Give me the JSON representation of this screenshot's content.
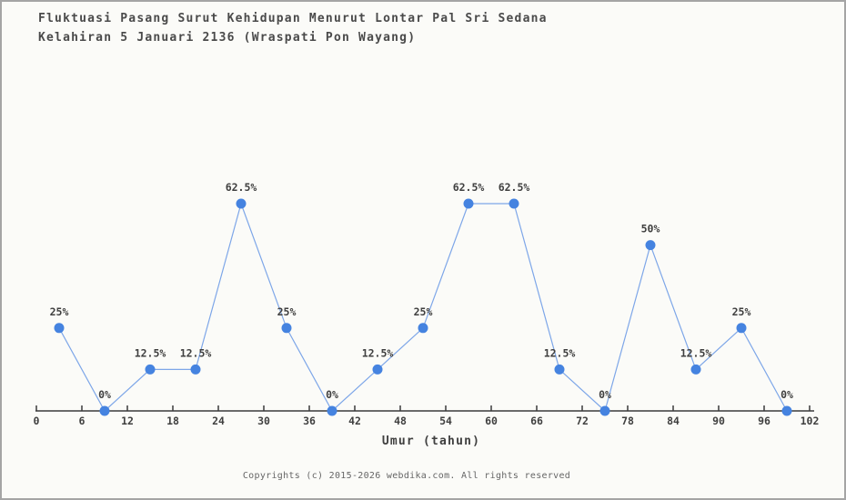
{
  "page": {
    "background": "#fbfbf8",
    "frame_border_color": "#a5a5a5"
  },
  "header": {
    "title_line1": "Fluktuasi Pasang Surut Kehidupan Menurut Lontar Pal Sri Sedana",
    "title_line2": "Kelahiran 5 Januari 2136 (Wraspati Pon Wayang)"
  },
  "chart_data": {
    "type": "line",
    "title": "Fluktuasi Pasang Surut Kehidupan Menurut Lontar Pal Sri Sedana Kelahiran 5 Januari 2136 (Wraspati Pon Wayang)",
    "x": [
      3,
      9,
      15,
      21,
      27,
      33,
      39,
      45,
      51,
      57,
      63,
      69,
      75,
      81,
      87,
      93,
      99
    ],
    "values": [
      25,
      0,
      12.5,
      12.5,
      62.5,
      25,
      0,
      12.5,
      25,
      62.5,
      62.5,
      12.5,
      0,
      50,
      12.5,
      25,
      0
    ],
    "point_labels": [
      "25%",
      "0%",
      "12.5%",
      "12.5%",
      "62.5%",
      "25%",
      "0%",
      "12.5%",
      "25%",
      "62.5%",
      "62.5%",
      "12.5%",
      "0%",
      "50%",
      "12.5%",
      "25%",
      "0%"
    ],
    "x_ticks": [
      0,
      6,
      12,
      18,
      24,
      30,
      36,
      42,
      48,
      54,
      60,
      66,
      72,
      78,
      84,
      90,
      96,
      102
    ],
    "xlim": [
      0,
      102
    ],
    "ylim": [
      0,
      70
    ],
    "xlabel": "Umur (tahun)",
    "ylabel": "",
    "grid": false,
    "legend": null,
    "line_color": "#7da6e8",
    "marker_color": "#4583e0",
    "axis_color": "#3a3a3a",
    "label_color": "#3f3f3f"
  },
  "footer": {
    "copyright": "Copyrights (c) 2015-2026 webdika.com. All rights reserved"
  }
}
